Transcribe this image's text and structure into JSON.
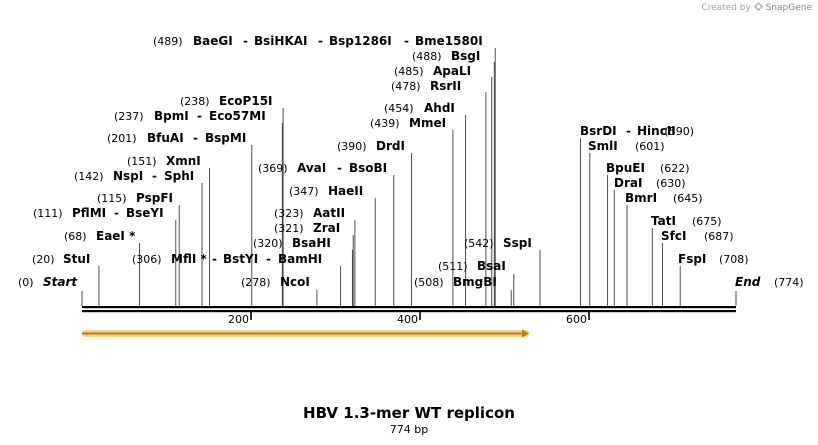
{
  "credit": {
    "prefix": "Created by",
    "icon": "snapgene-logo-icon",
    "brand": "SnapGene"
  },
  "map": {
    "title": "HBV 1.3-mer WT replicon",
    "length_label": "774 bp",
    "length": 774,
    "start": {
      "label": "Start",
      "pos_label": "(0)",
      "pos": 0
    },
    "end": {
      "label": "End",
      "pos_label": "(774)",
      "pos": 774
    },
    "ticks": [
      {
        "label": "200",
        "pos": 200
      },
      {
        "label": "400",
        "pos": 400
      },
      {
        "label": "600",
        "pos": 600
      }
    ],
    "feature": {
      "name": "orange-arrow",
      "start": 0,
      "end": 529,
      "color": "#f3b332",
      "edge_color": "#b97d12"
    },
    "sites": [
      {
        "pos_label": "(20)",
        "names": [
          "StuI"
        ],
        "pos": 20
      },
      {
        "pos_label": "(68)",
        "names": [
          "EaeI *"
        ],
        "pos": 68
      },
      {
        "pos_label": "(111)",
        "names": [
          "PflMI",
          "BseYI"
        ],
        "pos": 111
      },
      {
        "pos_label": "(115)",
        "names": [
          "PspFI"
        ],
        "pos": 115
      },
      {
        "pos_label": "(142)",
        "names": [
          "NspI",
          "SphI"
        ],
        "pos": 142
      },
      {
        "pos_label": "(151)",
        "names": [
          "XmnI"
        ],
        "pos": 151
      },
      {
        "pos_label": "(201)",
        "names": [
          "BfuAI",
          "BspMI"
        ],
        "pos": 201
      },
      {
        "pos_label": "(237)",
        "names": [
          "BpmI",
          "Eco57MI"
        ],
        "pos": 237
      },
      {
        "pos_label": "(238)",
        "names": [
          "EcoP15I"
        ],
        "pos": 238
      },
      {
        "pos_label": "(489)",
        "names": [
          "BaeGI",
          "BsiHKAI",
          "Bsp1286I",
          "Bme1580I"
        ],
        "pos": 489
      },
      {
        "pos_label": "(306)",
        "names": [
          "MflI *",
          "BstYI",
          "BamHI"
        ],
        "pos": 306
      },
      {
        "pos_label": "(278)",
        "names": [
          "NcoI"
        ],
        "pos": 278
      },
      {
        "pos_label": "(320)",
        "names": [
          "BsaHI"
        ],
        "pos": 320
      },
      {
        "pos_label": "(321)",
        "names": [
          "ZraI"
        ],
        "pos": 321
      },
      {
        "pos_label": "(323)",
        "names": [
          "AatII"
        ],
        "pos": 323
      },
      {
        "pos_label": "(347)",
        "names": [
          "HaeII"
        ],
        "pos": 347
      },
      {
        "pos_label": "(369)",
        "names": [
          "AvaI",
          "BsoBI"
        ],
        "pos": 369
      },
      {
        "pos_label": "(390)",
        "names": [
          "DrdI"
        ],
        "pos": 390
      },
      {
        "pos_label": "(439)",
        "names": [
          "MmeI"
        ],
        "pos": 439
      },
      {
        "pos_label": "(454)",
        "names": [
          "AhdI"
        ],
        "pos": 454
      },
      {
        "pos_label": "(478)",
        "names": [
          "RsrII"
        ],
        "pos": 478
      },
      {
        "pos_label": "(485)",
        "names": [
          "ApaLI"
        ],
        "pos": 485
      },
      {
        "pos_label": "(488)",
        "names": [
          "BsgI"
        ],
        "pos": 488
      },
      {
        "pos_label": "(508)",
        "names": [
          "BmgBI"
        ],
        "pos": 508
      },
      {
        "pos_label": "(511)",
        "names": [
          "BsaI"
        ],
        "pos": 511
      },
      {
        "pos_label": "(542)",
        "names": [
          "SspI"
        ],
        "pos": 542
      },
      {
        "pos_label": "(590)",
        "names": [
          "BsrDI",
          "HincII"
        ],
        "pos": 590
      },
      {
        "pos_label": "(601)",
        "names": [
          "SmlI"
        ],
        "pos": 601
      },
      {
        "pos_label": "(622)",
        "names": [
          "BpuEI"
        ],
        "pos": 622
      },
      {
        "pos_label": "(630)",
        "names": [
          "DraI"
        ],
        "pos": 630
      },
      {
        "pos_label": "(645)",
        "names": [
          "BmrI"
        ],
        "pos": 645
      },
      {
        "pos_label": "(675)",
        "names": [
          "TatI"
        ],
        "pos": 675
      },
      {
        "pos_label": "(687)",
        "names": [
          "SfcI"
        ],
        "pos": 687
      },
      {
        "pos_label": "(708)",
        "names": [
          "FspI"
        ],
        "pos": 708
      }
    ]
  }
}
